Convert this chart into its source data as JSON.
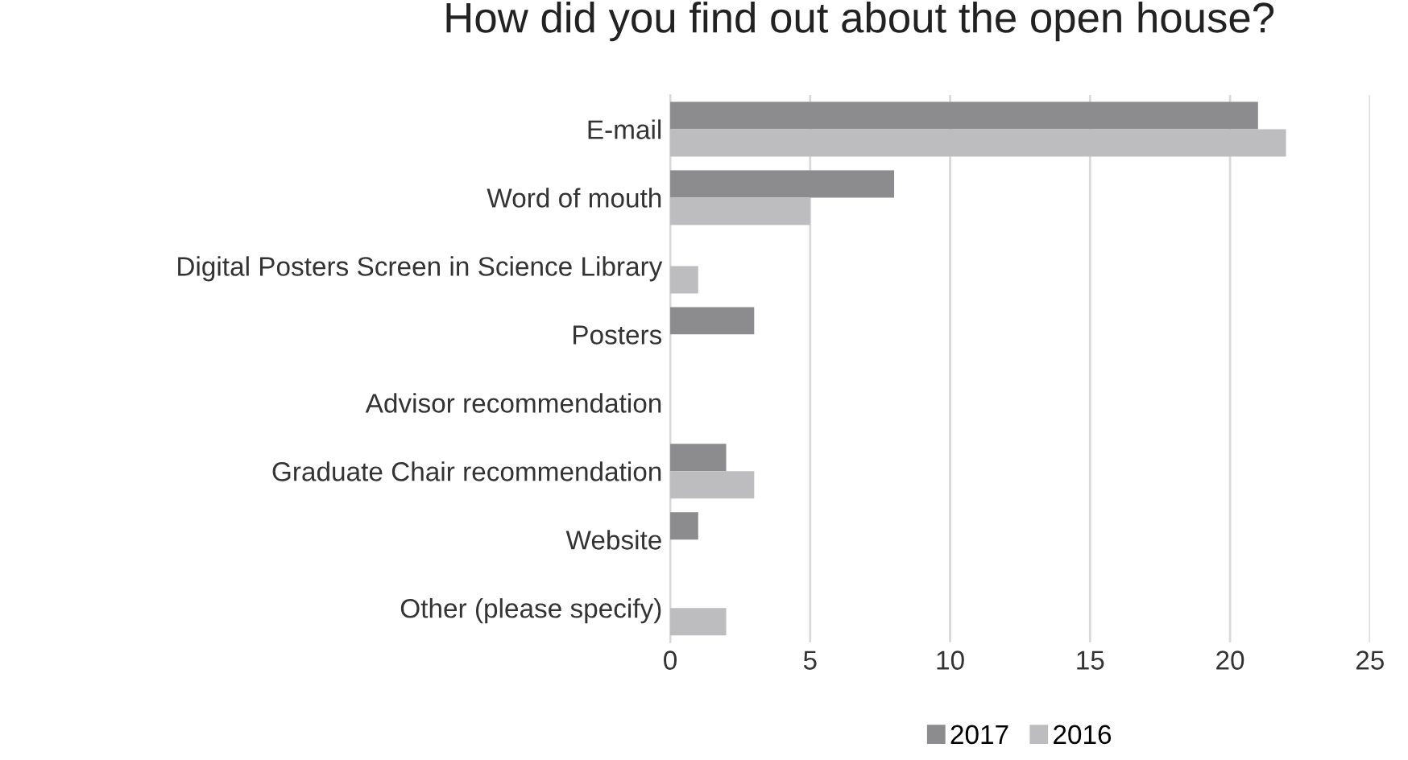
{
  "chart_data": {
    "type": "bar",
    "orientation": "horizontal",
    "title": "How did you find out about the open house?",
    "categories": [
      "E-mail",
      "Word of mouth",
      "Digital Posters Screen in Science Library",
      "Posters",
      "Advisor recommendation",
      "Graduate Chair recommendation",
      "Website",
      "Other (please specify)"
    ],
    "series": [
      {
        "name": "2017",
        "color": "#8c8c8e",
        "values": [
          21,
          8,
          0,
          3,
          0,
          2,
          1,
          0
        ]
      },
      {
        "name": "2016",
        "color": "#bdbdbf",
        "values": [
          22,
          5,
          1,
          0,
          0,
          3,
          0,
          2
        ]
      }
    ],
    "xlim": [
      0,
      25
    ],
    "xticks": [
      0,
      5,
      10,
      15,
      20,
      25
    ],
    "grid": "x",
    "legend": "bottom"
  }
}
